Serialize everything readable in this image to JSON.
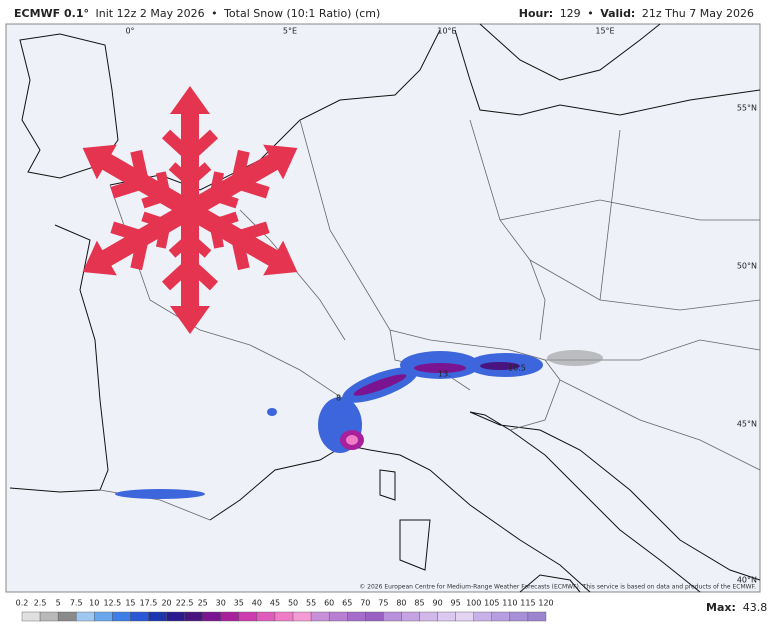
{
  "header": {
    "model": "ECMWF 0.1°",
    "separator": "•",
    "init": "Init 12z 2 May 2026",
    "product": "Total Snow (10:1 Ratio) (cm)",
    "hour_label": "Hour:",
    "hour_value": "129",
    "valid_label": "Valid:",
    "valid_value": "21z Thu 7 May 2026"
  },
  "map": {
    "lon_labels": [
      "0°",
      "5°E",
      "10°E",
      "15°E"
    ],
    "lat_labels": [
      "55°N",
      "50°N",
      "45°N",
      "40°N"
    ],
    "value_labels": [
      "13.",
      "10.5",
      "8"
    ],
    "credit": "© 2026 European Centre for Medium-Range Weather Forecasts (ECMWF). This service is based on data and products of the ECMWF."
  },
  "legend": {
    "labels": [
      0.2,
      2.5,
      5,
      7.5,
      10,
      12.5,
      15,
      17.5,
      20,
      22.5,
      25,
      30,
      35,
      40,
      45,
      50,
      55,
      60,
      65,
      70,
      75,
      80,
      85,
      90,
      95,
      100,
      105,
      110,
      115,
      120
    ],
    "colors": [
      "#e0e0e0",
      "#b8b8b8",
      "#8a8a8a",
      "#9ec8f0",
      "#6aa6ec",
      "#3d7fe6",
      "#2a58d6",
      "#1c36b0",
      "#2a1c90",
      "#4a1480",
      "#7a1490",
      "#a8209c",
      "#cc3cae",
      "#e05cbc",
      "#f07cc8",
      "#f49ad4",
      "#c890d8",
      "#b87ed2",
      "#a66ccc",
      "#9a60c4",
      "#b890dc",
      "#c6a4e4",
      "#d2b8ea",
      "#dcc8f0",
      "#e4d4f4",
      "#c8b0e8",
      "#b89ee0",
      "#a890d8",
      "#9c84d0"
    ],
    "max_label": "Max:",
    "max_value": 43.8
  }
}
